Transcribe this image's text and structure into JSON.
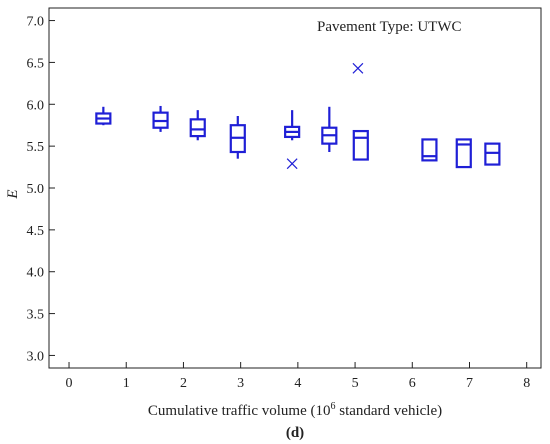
{
  "chart_data": {
    "type": "box",
    "annotation": "Pavement Type: UTWC",
    "xlabel": "Cumulative traffic volume (10",
    "xlabel_superscript": "6",
    "xlabel_suffix": " standard vehicle)",
    "ylabel": "E",
    "caption": "(d)",
    "xlim": [
      -0.35,
      8.25
    ],
    "ylim": [
      2.85,
      7.15
    ],
    "xticks": [
      0,
      1,
      2,
      3,
      4,
      5,
      6,
      7,
      8
    ],
    "yticks": [
      3.0,
      3.5,
      4.0,
      4.5,
      5.0,
      5.5,
      6.0,
      6.5,
      7.0
    ],
    "xtick_labels": [
      "0",
      "1",
      "2",
      "3",
      "4",
      "5",
      "6",
      "7",
      "8"
    ],
    "ytick_labels": [
      "3.0",
      "3.5",
      "4.0",
      "4.5",
      "5.0",
      "5.5",
      "6.0",
      "6.5",
      "7.0"
    ],
    "box_color": "#1f1fd6",
    "boxes": [
      {
        "x": 0.6,
        "whisker_low": 5.75,
        "q1": 5.77,
        "median": 5.83,
        "q3": 5.89,
        "whisker_high": 5.97
      },
      {
        "x": 1.6,
        "whisker_low": 5.67,
        "q1": 5.72,
        "median": 5.8,
        "q3": 5.9,
        "whisker_high": 5.98
      },
      {
        "x": 2.25,
        "whisker_low": 5.57,
        "q1": 5.62,
        "median": 5.7,
        "q3": 5.82,
        "whisker_high": 5.93
      },
      {
        "x": 2.95,
        "whisker_low": 5.35,
        "q1": 5.43,
        "median": 5.6,
        "q3": 5.75,
        "whisker_high": 5.86
      },
      {
        "x": 3.9,
        "whisker_low": 5.57,
        "q1": 5.61,
        "median": 5.67,
        "q3": 5.73,
        "whisker_high": 5.93
      },
      {
        "x": 4.55,
        "whisker_low": 5.43,
        "q1": 5.53,
        "median": 5.63,
        "q3": 5.72,
        "whisker_high": 5.97
      },
      {
        "x": 5.1,
        "whisker_low": 5.33,
        "q1": 5.34,
        "median": 5.6,
        "q3": 5.68,
        "whisker_high": 5.68
      },
      {
        "x": 6.3,
        "whisker_low": 5.33,
        "q1": 5.33,
        "median": 5.38,
        "q3": 5.58,
        "whisker_high": 5.58
      },
      {
        "x": 6.9,
        "whisker_low": 5.25,
        "q1": 5.25,
        "median": 5.52,
        "q3": 5.58,
        "whisker_high": 5.58
      },
      {
        "x": 7.4,
        "whisker_low": 5.28,
        "q1": 5.28,
        "median": 5.42,
        "q3": 5.53,
        "whisker_high": 5.53
      }
    ],
    "outliers": [
      {
        "x": 3.9,
        "y": 5.29
      },
      {
        "x": 5.05,
        "y": 6.43
      }
    ]
  }
}
